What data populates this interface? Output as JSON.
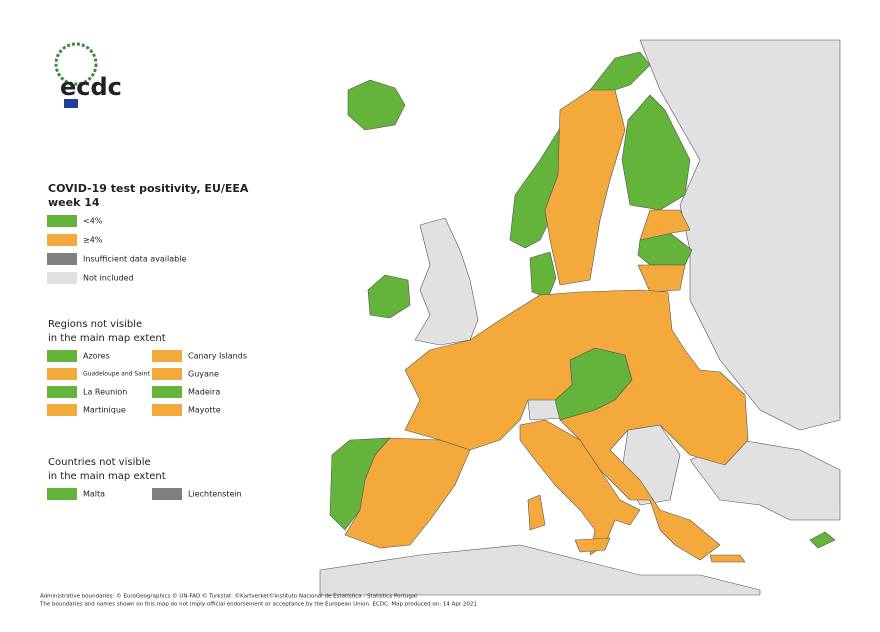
{
  "logo": {
    "text": "ecdc"
  },
  "legend": {
    "title_lines": [
      "COVID-19 test positivity, EU/EEA",
      "week 14"
    ],
    "items": [
      {
        "label": "<4%",
        "color": "#64b33a"
      },
      {
        "label": "≥4%",
        "color": "#f3a93c"
      },
      {
        "label": "Insufficient data available",
        "color": "#7f7f7f"
      },
      {
        "label": "Not included",
        "color": "#e1e1e1"
      }
    ]
  },
  "regions": {
    "title_lines": [
      "Regions not visible",
      "in the main map extent"
    ],
    "items": [
      {
        "label": "Azores",
        "color": "#64b33a"
      },
      {
        "label": "Canary Islands",
        "color": "#f3a93c"
      },
      {
        "label": "Guadeloupe and Saint Martin",
        "color": "#f3a93c"
      },
      {
        "label": "Guyane",
        "color": "#f3a93c"
      },
      {
        "label": "La Reunion",
        "color": "#64b33a"
      },
      {
        "label": "Madeira",
        "color": "#64b33a"
      },
      {
        "label": "Martinique",
        "color": "#f3a93c"
      },
      {
        "label": "Mayotte",
        "color": "#f3a93c"
      }
    ]
  },
  "countries": {
    "title_lines": [
      "Countries not visible",
      "in the main map extent"
    ],
    "items": [
      {
        "label": "Malta",
        "color": "#64b33a"
      },
      {
        "label": "Liechtenstein",
        "color": "#7f7f7f"
      }
    ]
  },
  "footer": {
    "lines": [
      "Administrative boundaries: © EuroGeographics © UN-FAO © Turkstat. ©Kartverket©Instituto Nacional de Estatística - Statistics Portugal.",
      "The boundaries and names shown on this map do not imply official endorsement or acceptance by the European Union. ECDC. Map produced on: 14 Apr 2021"
    ]
  }
}
